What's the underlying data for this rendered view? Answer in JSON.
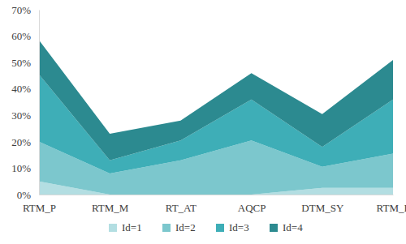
{
  "chart_data": {
    "type": "area",
    "stacked": true,
    "grid": false,
    "legend": "bottom",
    "categories": [
      "RTM_P",
      "RTM_M",
      "RT_AT",
      "AQCP",
      "DTM_SY",
      "RTM_L"
    ],
    "series": [
      {
        "name": "Id=1",
        "color": "#b3dee2",
        "values": [
          5,
          0,
          0,
          0,
          2.5,
          2.5
        ]
      },
      {
        "name": "Id=2",
        "color": "#7cc7cd",
        "values": [
          15,
          8,
          13,
          20.5,
          8,
          13
        ]
      },
      {
        "name": "Id=3",
        "color": "#3eaeb7",
        "values": [
          25.5,
          5,
          7.5,
          15.5,
          7.5,
          20.5
        ]
      },
      {
        "name": "Id=4",
        "color": "#2c8a90",
        "values": [
          13,
          10,
          7.5,
          10,
          12.5,
          15
        ]
      }
    ],
    "ylim": [
      0,
      70
    ],
    "yticks": [
      {
        "value": 0,
        "label": "0%"
      },
      {
        "value": 10,
        "label": "10%"
      },
      {
        "value": 20,
        "label": "20%"
      },
      {
        "value": 30,
        "label": "30%"
      },
      {
        "value": 40,
        "label": "40%"
      },
      {
        "value": 50,
        "label": "50%"
      },
      {
        "value": 60,
        "label": "60%"
      },
      {
        "value": 70,
        "label": "70%"
      }
    ]
  }
}
